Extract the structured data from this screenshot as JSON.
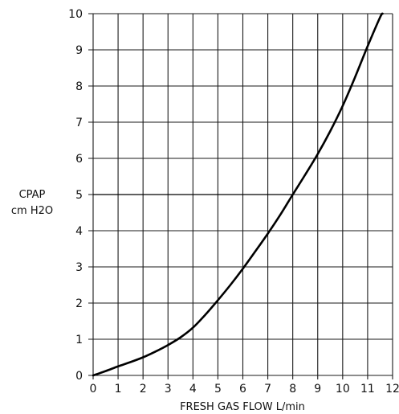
{
  "chart_data": {
    "type": "line",
    "xlabel": "FRESH GAS FLOW L/min",
    "ylabel_lines": [
      "CPAP",
      "cm H2O"
    ],
    "xlim": [
      0,
      12
    ],
    "ylim": [
      0,
      10
    ],
    "x_ticks": [
      "0",
      "1",
      "2",
      "3",
      "4",
      "5",
      "6",
      "7",
      "8",
      "9",
      "10",
      "11",
      "12"
    ],
    "y_ticks": [
      "0",
      "1",
      "2",
      "3",
      "4",
      "5",
      "6",
      "7",
      "8",
      "9",
      "10"
    ],
    "grid": true,
    "series": [
      {
        "x": [
          0,
          0.5,
          1,
          1.5,
          2,
          2.5,
          3,
          3.5,
          4,
          4.5,
          5,
          5.5,
          6,
          6.5,
          7,
          7.5,
          8,
          8.5,
          9,
          9.5,
          10,
          10.5,
          11,
          11.5,
          11.6
        ],
        "y": [
          0,
          0.12,
          0.25,
          0.37,
          0.5,
          0.66,
          0.84,
          1.05,
          1.32,
          1.68,
          2.08,
          2.5,
          2.95,
          3.43,
          3.92,
          4.44,
          5.0,
          5.55,
          6.12,
          6.75,
          7.45,
          8.25,
          9.1,
          9.9,
          10.0
        ]
      }
    ],
    "reference_line": {
      "y": 5,
      "x_from": 0,
      "x_to": 8
    },
    "line_color": "#000000",
    "grid_color": "#1a1a1a"
  }
}
